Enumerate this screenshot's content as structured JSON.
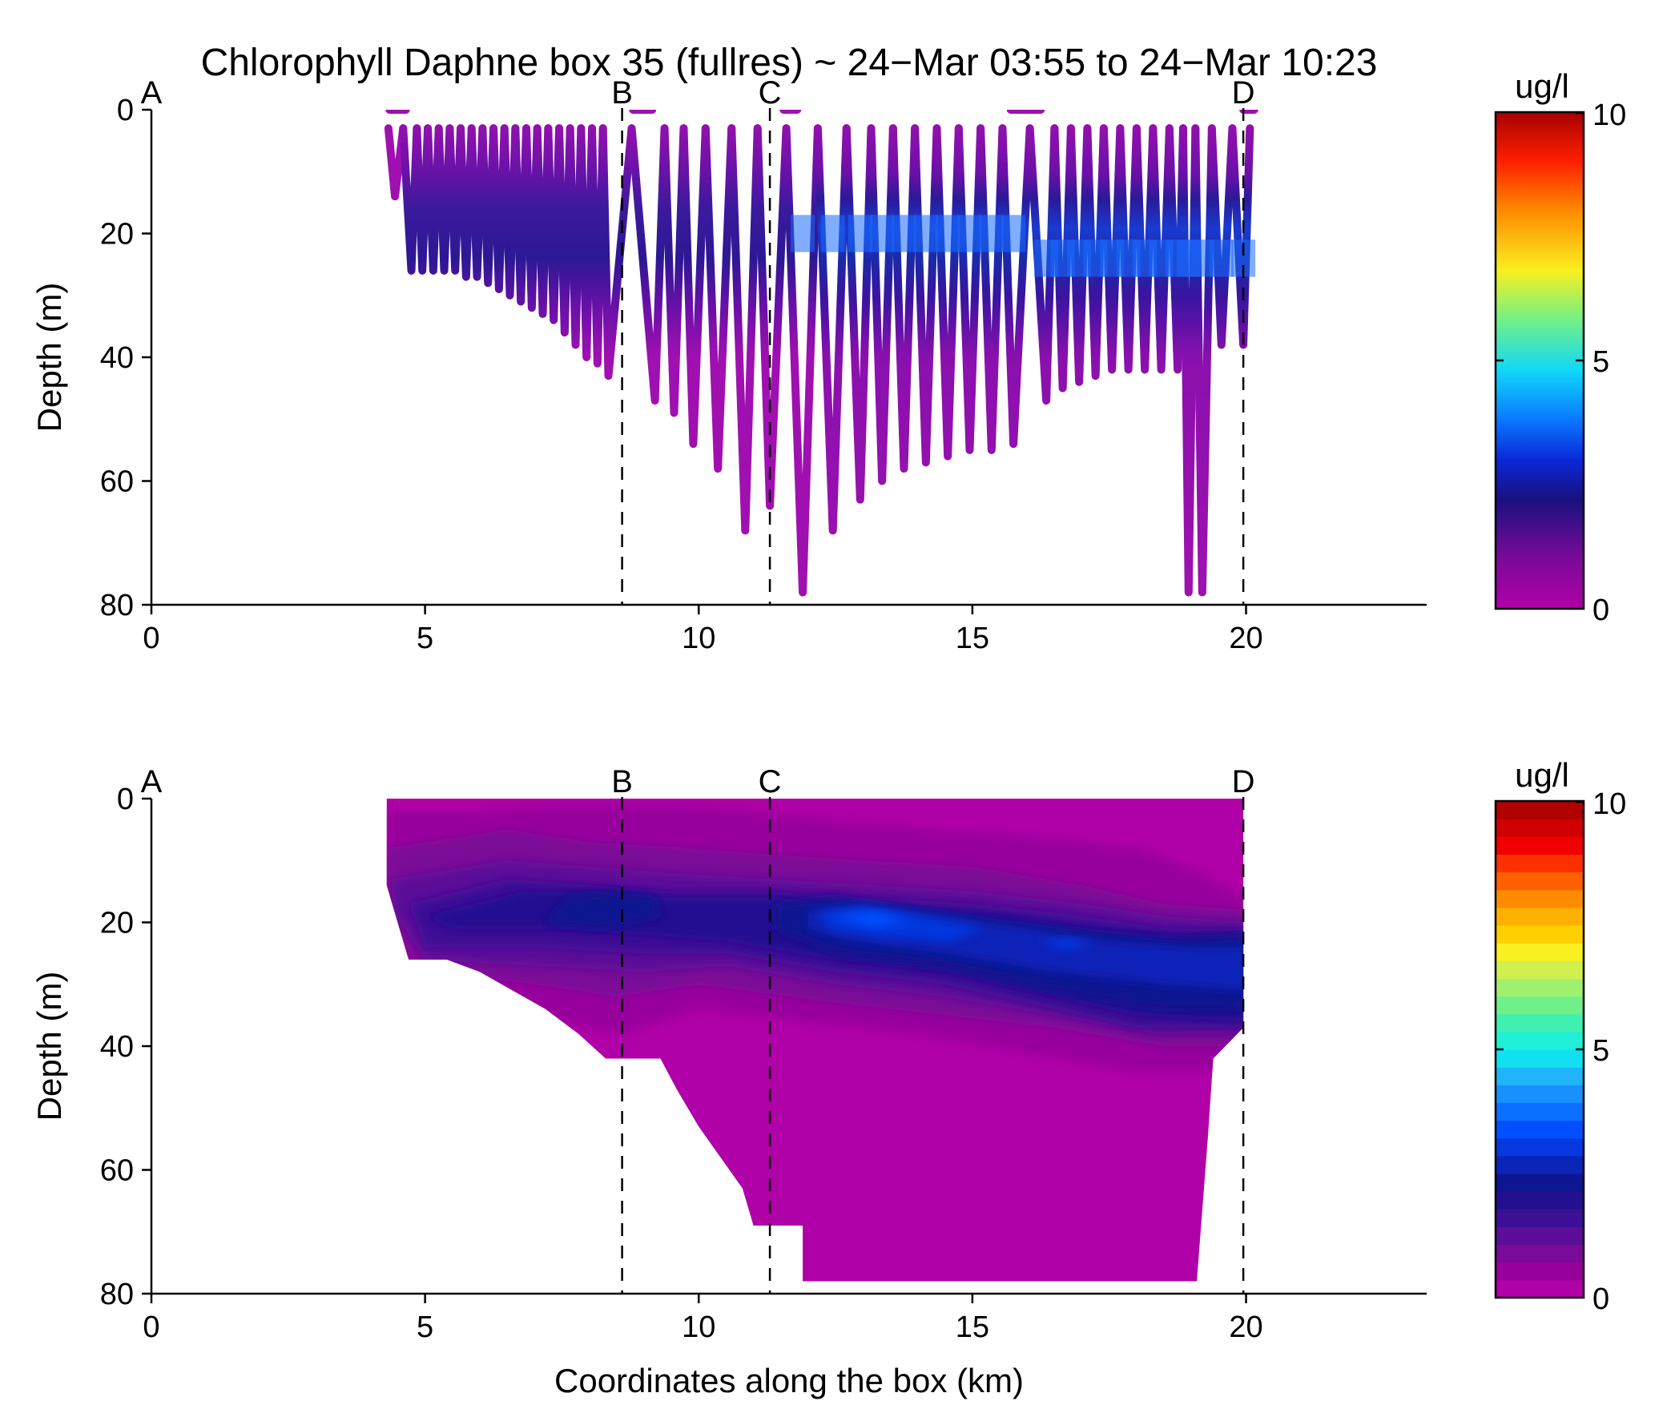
{
  "title": "Chlorophyll Daphne box 35 (fullres) ~ 24−Mar 03:55 to 24−Mar 10:23",
  "colors": {
    "track": "#a010b0",
    "track_deep": "#2a1590",
    "contour_bg": "#b000a8",
    "chl_max": "#1a4aff"
  },
  "chart_data": [
    {
      "panel": "top",
      "type": "scatter",
      "style": "yo-yo glider track colored by chlorophyll",
      "xlabel": "",
      "ylabel": "Depth (m)",
      "xlim": [
        0,
        23.3
      ],
      "ylim": [
        80,
        0
      ],
      "y_inverted": true,
      "x_ticks": [
        0,
        5,
        10,
        15,
        20
      ],
      "y_ticks": [
        0,
        20,
        40,
        60,
        80
      ],
      "markers": [
        {
          "label": "A",
          "x": 0
        },
        {
          "label": "B",
          "x": 8.6
        },
        {
          "label": "C",
          "x": 11.3
        },
        {
          "label": "D",
          "x": 19.95
        }
      ],
      "colorbar": {
        "label": "ug/l",
        "min": 0,
        "max": 10,
        "ticks": [
          0,
          5,
          10
        ],
        "colormap": "jet-with-magenta-low",
        "continuous": true
      },
      "profile_bottom_depths": [
        {
          "x": 4.45,
          "depth": 14
        },
        {
          "x": 4.75,
          "depth": 26
        },
        {
          "x": 4.95,
          "depth": 26
        },
        {
          "x": 5.15,
          "depth": 26
        },
        {
          "x": 5.35,
          "depth": 26
        },
        {
          "x": 5.55,
          "depth": 26
        },
        {
          "x": 5.75,
          "depth": 27
        },
        {
          "x": 5.95,
          "depth": 27
        },
        {
          "x": 6.15,
          "depth": 28
        },
        {
          "x": 6.35,
          "depth": 29
        },
        {
          "x": 6.55,
          "depth": 30
        },
        {
          "x": 6.75,
          "depth": 31
        },
        {
          "x": 6.95,
          "depth": 32
        },
        {
          "x": 7.15,
          "depth": 33
        },
        {
          "x": 7.35,
          "depth": 34
        },
        {
          "x": 7.55,
          "depth": 36
        },
        {
          "x": 7.75,
          "depth": 38
        },
        {
          "x": 7.95,
          "depth": 40
        },
        {
          "x": 8.15,
          "depth": 41
        },
        {
          "x": 8.35,
          "depth": 43
        },
        {
          "x": 9.2,
          "depth": 47
        },
        {
          "x": 9.55,
          "depth": 49
        },
        {
          "x": 9.9,
          "depth": 54
        },
        {
          "x": 10.35,
          "depth": 58
        },
        {
          "x": 10.85,
          "depth": 68
        },
        {
          "x": 11.3,
          "depth": 64
        },
        {
          "x": 11.9,
          "depth": 78
        },
        {
          "x": 12.45,
          "depth": 68
        },
        {
          "x": 12.95,
          "depth": 63
        },
        {
          "x": 13.35,
          "depth": 60
        },
        {
          "x": 13.75,
          "depth": 58
        },
        {
          "x": 14.15,
          "depth": 57
        },
        {
          "x": 14.55,
          "depth": 56
        },
        {
          "x": 14.95,
          "depth": 55
        },
        {
          "x": 15.35,
          "depth": 55
        },
        {
          "x": 15.75,
          "depth": 54
        },
        {
          "x": 16.35,
          "depth": 47
        },
        {
          "x": 16.65,
          "depth": 45
        },
        {
          "x": 16.95,
          "depth": 44
        },
        {
          "x": 17.25,
          "depth": 43
        },
        {
          "x": 17.55,
          "depth": 42
        },
        {
          "x": 17.85,
          "depth": 42
        },
        {
          "x": 18.15,
          "depth": 42
        },
        {
          "x": 18.45,
          "depth": 42
        },
        {
          "x": 18.75,
          "depth": 42
        },
        {
          "x": 18.95,
          "depth": 78
        },
        {
          "x": 19.2,
          "depth": 78
        },
        {
          "x": 19.55,
          "depth": 38
        },
        {
          "x": 19.95,
          "depth": 38
        }
      ],
      "surface_segments": [
        {
          "x0": 4.35,
          "x1": 4.65
        },
        {
          "x0": 8.8,
          "x1": 9.15
        },
        {
          "x0": 11.55,
          "x1": 11.8
        },
        {
          "x0": 15.7,
          "x1": 16.25
        },
        {
          "x0": 19.95,
          "x1": 20.15
        }
      ],
      "chlorophyll_maximum": {
        "depth_range_m": [
          15,
          30
        ],
        "peak_value_ugl": 4.5,
        "x_range_km": [
          12,
          20
        ]
      }
    },
    {
      "panel": "bottom",
      "type": "heatmap",
      "style": "filled contours of interpolated chlorophyll",
      "xlabel": "Coordinates along the box (km)",
      "ylabel": "Depth (m)",
      "xlim": [
        0,
        23.3
      ],
      "ylim": [
        80,
        0
      ],
      "y_inverted": true,
      "x_ticks": [
        0,
        5,
        10,
        15,
        20
      ],
      "y_ticks": [
        0,
        20,
        40,
        60,
        80
      ],
      "markers": [
        {
          "label": "A",
          "x": 0
        },
        {
          "label": "B",
          "x": 8.6
        },
        {
          "label": "C",
          "x": 11.3
        },
        {
          "label": "D",
          "x": 19.95
        }
      ],
      "colorbar": {
        "label": "ug/l",
        "min": 0,
        "max": 10,
        "ticks": [
          0,
          5,
          10
        ],
        "continuous": false,
        "levels": [
          "#b000a8",
          "#98009c",
          "#7a0a98",
          "#5c0e98",
          "#3c1096",
          "#221090",
          "#0e1590",
          "#0a24b8",
          "#0538e0",
          "#0050ff",
          "#0a70ff",
          "#1890ff",
          "#20b4f8",
          "#10e0f0",
          "#20f0d8",
          "#40f0b0",
          "#70f088",
          "#a0f070",
          "#d0f050",
          "#f8f020",
          "#ffd000",
          "#ffb000",
          "#ff8c00",
          "#ff6000",
          "#ff3000",
          "#f00000",
          "#d00000",
          "#b00000"
        ]
      },
      "data_extent": {
        "x_start_km": 4.3,
        "x_end_km": 19.95,
        "bottom_boundary": [
          {
            "x": 4.3,
            "depth": 14
          },
          {
            "x": 4.7,
            "depth": 26
          },
          {
            "x": 5.4,
            "depth": 26
          },
          {
            "x": 6.0,
            "depth": 28
          },
          {
            "x": 6.6,
            "depth": 31
          },
          {
            "x": 7.2,
            "depth": 34
          },
          {
            "x": 7.8,
            "depth": 38
          },
          {
            "x": 8.3,
            "depth": 42
          },
          {
            "x": 9.3,
            "depth": 42
          },
          {
            "x": 9.6,
            "depth": 47
          },
          {
            "x": 10.0,
            "depth": 53
          },
          {
            "x": 10.4,
            "depth": 58
          },
          {
            "x": 10.8,
            "depth": 63
          },
          {
            "x": 11.0,
            "depth": 69
          },
          {
            "x": 11.9,
            "depth": 69
          },
          {
            "x": 11.9,
            "depth": 78
          },
          {
            "x": 19.1,
            "depth": 78
          },
          {
            "x": 19.3,
            "depth": 55
          },
          {
            "x": 19.4,
            "depth": 42
          },
          {
            "x": 19.95,
            "depth": 37
          }
        ]
      },
      "contour_levels_ugl": [
        0.4,
        0.8,
        1.2,
        1.6,
        2.0,
        2.4,
        2.8,
        3.2,
        3.6,
        4.0,
        4.4
      ]
    }
  ],
  "ui": {
    "colorbar_label": "ug/l",
    "colorbar_tick_min": "0",
    "colorbar_tick_mid": "5",
    "colorbar_tick_max": "10"
  }
}
